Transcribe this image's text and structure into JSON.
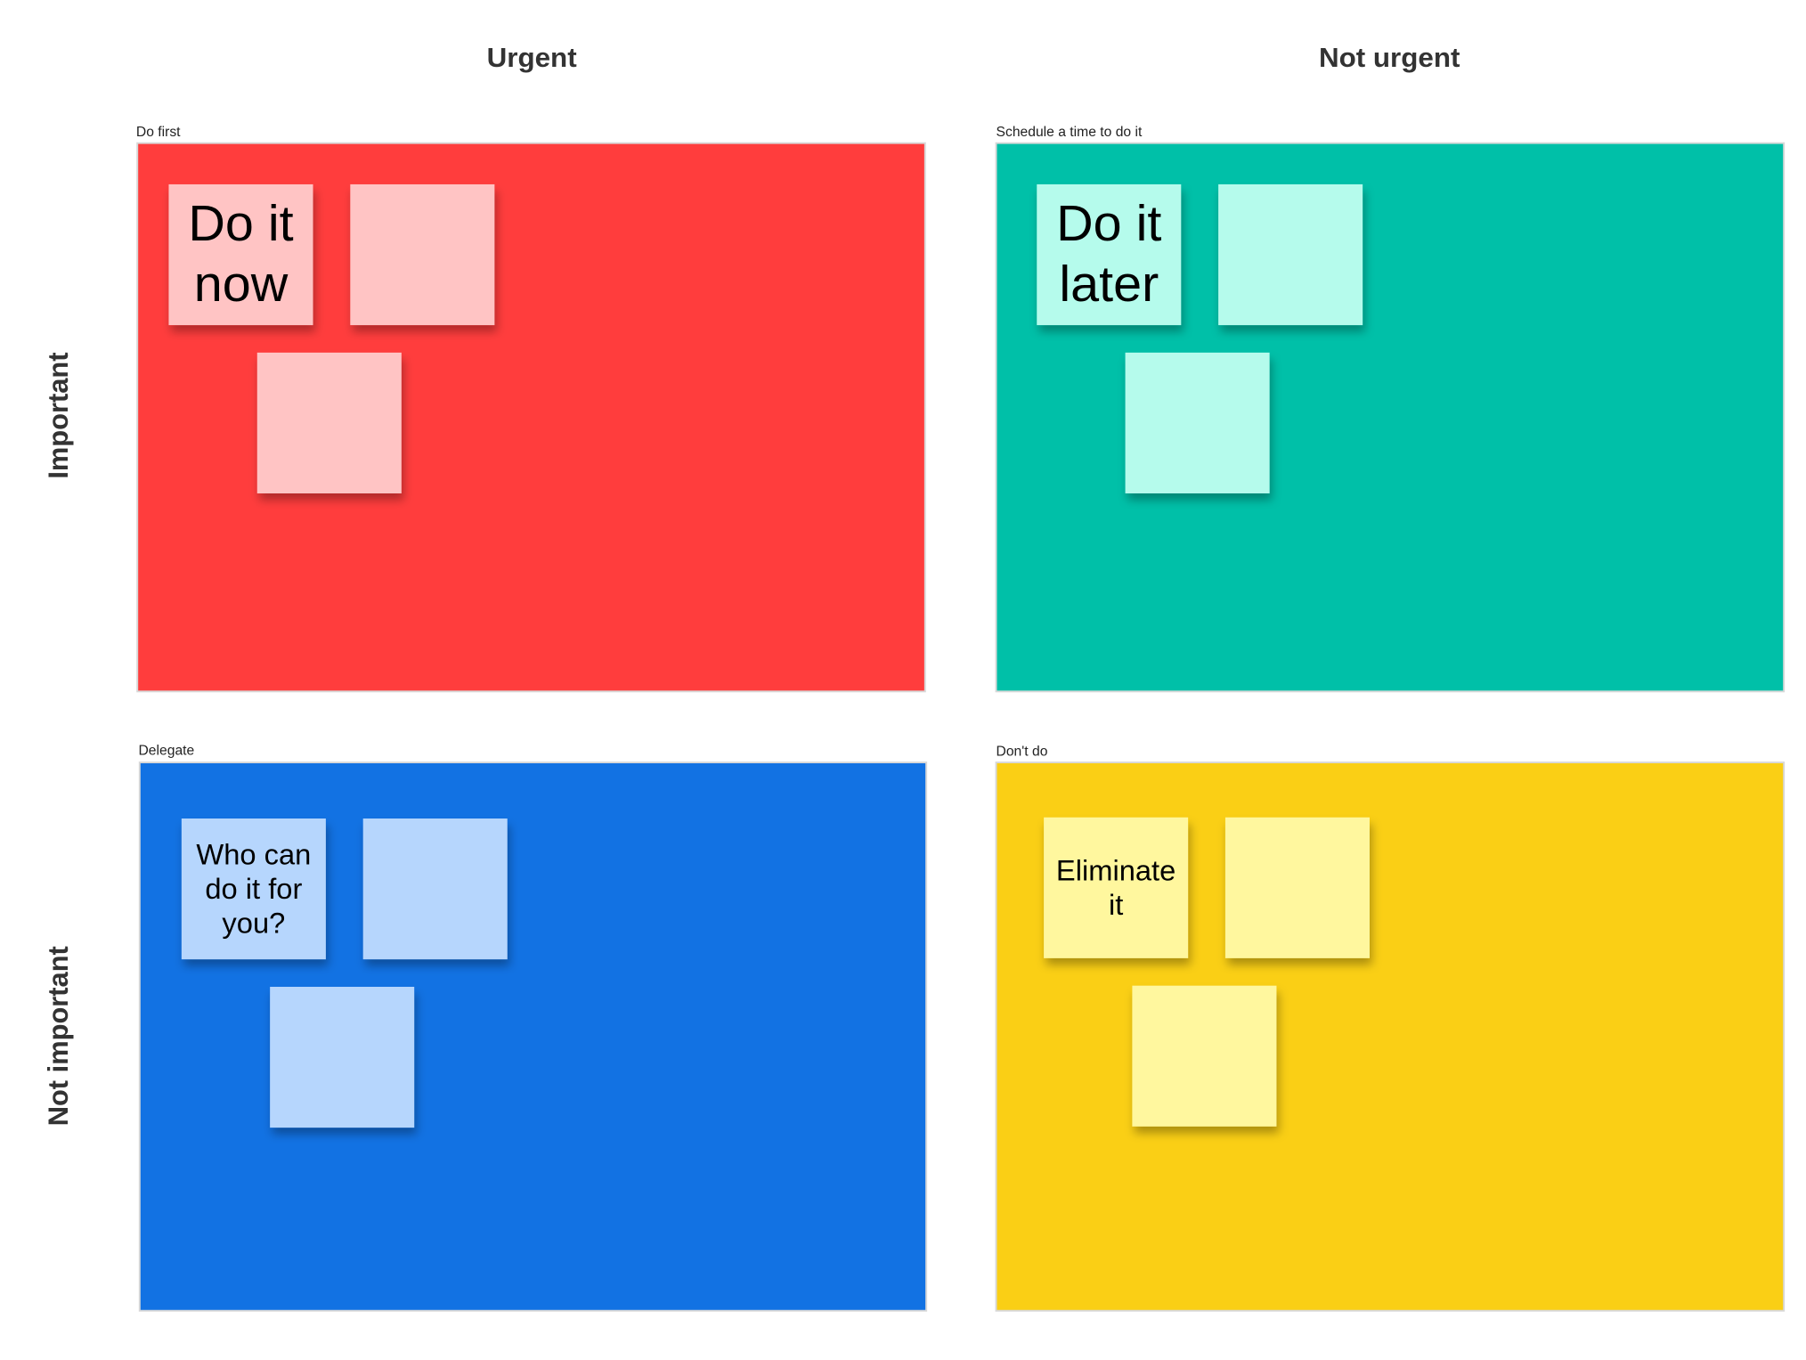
{
  "columns": [
    "Urgent",
    "Not urgent"
  ],
  "rows": [
    "Important",
    "Not important"
  ],
  "quadrants": [
    {
      "label": "Do first",
      "note": "Do it now"
    },
    {
      "label": "Schedule a time to do it",
      "note": "Do it later"
    },
    {
      "label": "Delegate",
      "note": "Who can do it for you?"
    },
    {
      "label": "Don't do",
      "note": "Eliminate it"
    }
  ]
}
